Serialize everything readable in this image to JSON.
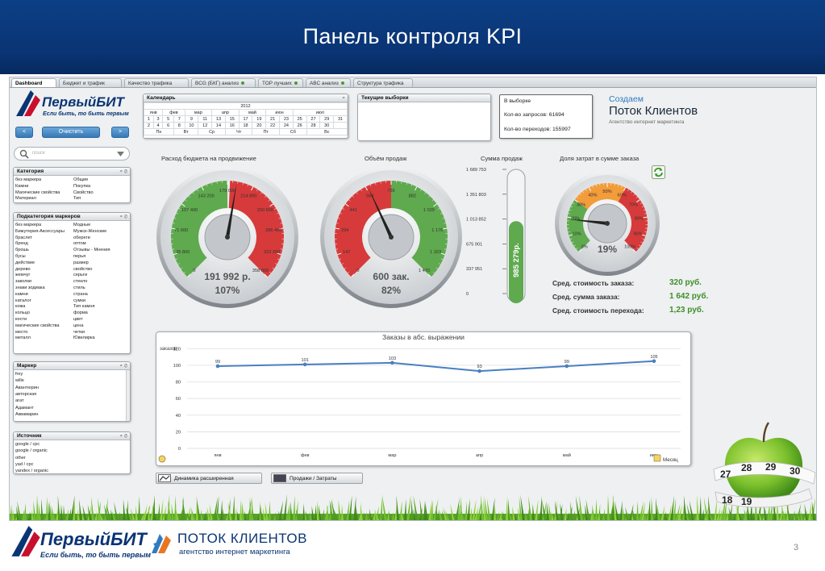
{
  "slide": {
    "title": "Панель контроля KPI",
    "page_number": "3"
  },
  "tabs": [
    {
      "label": "Dashboard",
      "active": true,
      "dot": false
    },
    {
      "label": "Бюджет и трафик",
      "active": false,
      "dot": false
    },
    {
      "label": "Качество трафика",
      "active": false,
      "dot": false
    },
    {
      "label": "BCG (БКГ) анализ",
      "active": false,
      "dot": true
    },
    {
      "label": "TOP лучших",
      "active": false,
      "dot": true
    },
    {
      "label": "ABC анализ",
      "active": false,
      "dot": true
    },
    {
      "label": "Структура трафика",
      "active": false,
      "dot": false
    }
  ],
  "brand": {
    "name": "ПервыйБИТ",
    "slogan": "Если быть, то быть первым"
  },
  "controls": {
    "prev": "<",
    "clear": "Очистить",
    "next": ">",
    "search_placeholder": "поиск"
  },
  "calendar": {
    "title": "Календарь",
    "year": "2012",
    "months": [
      "янв",
      "фев",
      "мар",
      "апр",
      "май",
      "июн",
      "июл"
    ],
    "days1": [
      "1",
      "3",
      "5",
      "7",
      "9",
      "11",
      "13",
      "15",
      "17",
      "19",
      "21",
      "23",
      "25",
      "27",
      "29",
      "31"
    ],
    "days2": [
      "2",
      "4",
      "6",
      "8",
      "10",
      "12",
      "14",
      "16",
      "18",
      "20",
      "22",
      "24",
      "26",
      "28",
      "30",
      ""
    ],
    "weekdays": [
      "Пн",
      "Вт",
      "Ср",
      "Чт",
      "Пт",
      "Сб",
      "Вс"
    ]
  },
  "selections": {
    "title": "Текущие выборки"
  },
  "sample": {
    "title": "В выборке",
    "requests_label": "Кол-во запросов: 61694",
    "clicks_label": "Кол-во переходов: 155997"
  },
  "promo": {
    "line1": "Создаем",
    "line2": "Поток Клиентов",
    "line3": "Агентство интернет маркетинга"
  },
  "category_list": {
    "title": "Категория",
    "col1": [
      "без маркера",
      "Камни",
      "Магические свойства",
      "Материал"
    ],
    "col2": [
      "Общие",
      "Покупка",
      "Свойство",
      "Тип"
    ]
  },
  "subcategory_list": {
    "title": "Подкатегория маркеров",
    "col1": [
      "без маркера",
      "Бижутерия-Аксессуары",
      "браслет",
      "бренд",
      "брошь",
      "бусы",
      "действие",
      "дерево",
      "жемчуг",
      "заколки",
      "знаки зодиака",
      "камни",
      "каталог",
      "кожа",
      "кольцо",
      "кости",
      "магические свойства",
      "место",
      "металл"
    ],
    "col2": [
      "Модные",
      "Мужск-Женские",
      "обереги",
      "оптом",
      "Отзывы - Мнения",
      "перья",
      "размер",
      "свойство",
      "серьги",
      "стекло",
      "стиль",
      "страна",
      "сумки",
      "Тип камня",
      "форма",
      "цвет",
      "цена",
      "четки",
      "Ювелирка"
    ]
  },
  "marker_list": {
    "title": "Маркер",
    "items": [
      "frey",
      "wille",
      "Авантюрин",
      "авторская",
      "агат",
      "Адамант",
      "Аквамарин"
    ]
  },
  "source_list": {
    "title": "Источник",
    "items": [
      "google / cpc",
      "google / organic",
      "other",
      "yad / cpc",
      "yandex / organic"
    ]
  },
  "gauges": {
    "budget": {
      "title": "Расход бюджета на продвижение",
      "ticks": [
        "0",
        "35 800",
        "71 600",
        "107 400",
        "143 200",
        "179 000",
        "214 800",
        "250 600",
        "286 400",
        "322 200",
        "358 000"
      ],
      "value_label": "191 992 р.",
      "pct_label": "107%",
      "fraction": 0.536
    },
    "sales": {
      "title": "Объём продаж",
      "ticks": [
        "0",
        "147",
        "294",
        "441",
        "588",
        "735",
        "882",
        "1 029",
        "1 176",
        "1 323",
        "1 470"
      ],
      "value_label": "600 зак.",
      "pct_label": "82%",
      "fraction": 0.408
    },
    "share": {
      "title": "Доля затрат в сумме заказа",
      "ticks": [
        "0%",
        "10%",
        "20%",
        "30%",
        "40%",
        "50%",
        "60%",
        "70%",
        "80%",
        "90%",
        "100%"
      ],
      "value_label": "19%",
      "fraction": 0.19
    }
  },
  "thermo": {
    "title": "Сумма продаж",
    "ticks": [
      "1 689 753",
      "1 351 803",
      "1 013 852",
      "675 901",
      "337 951",
      "0"
    ],
    "value_label": "985 279р.",
    "value": 985279,
    "max": 1689753
  },
  "averages": [
    {
      "label": "Сред. стоимость заказа:",
      "value": "320 руб."
    },
    {
      "label": "Сред. сумма заказа:",
      "value": "1 642 руб."
    },
    {
      "label": "Сред. стоимость перехода:",
      "value": "1,23 руб."
    }
  ],
  "bottom_buttons": {
    "dynamics": "Динамика расширенная",
    "sales_costs": "Продажи / Затраты"
  },
  "footer": {
    "brand2_name": "ПОТОК КЛИЕНТОВ",
    "brand2_tag": "агентство интернет маркетинга"
  },
  "apple_tape": [
    "27",
    "28",
    "29",
    "30",
    "18",
    "19"
  ],
  "chart_data": {
    "type": "line",
    "title": "Заказы в абс. выражении",
    "ylabel": "заказов",
    "xlabel": "Месяц",
    "categories": [
      "янв",
      "фев",
      "мар",
      "апр",
      "май",
      "июн"
    ],
    "series": [
      {
        "values": [
          99,
          101,
          103,
          93,
          99,
          105
        ]
      }
    ],
    "yticks": [
      0,
      20,
      40,
      60,
      80,
      100,
      120
    ],
    "ylim": [
      0,
      130
    ],
    "grid": true,
    "color": "#4a7fc0"
  }
}
